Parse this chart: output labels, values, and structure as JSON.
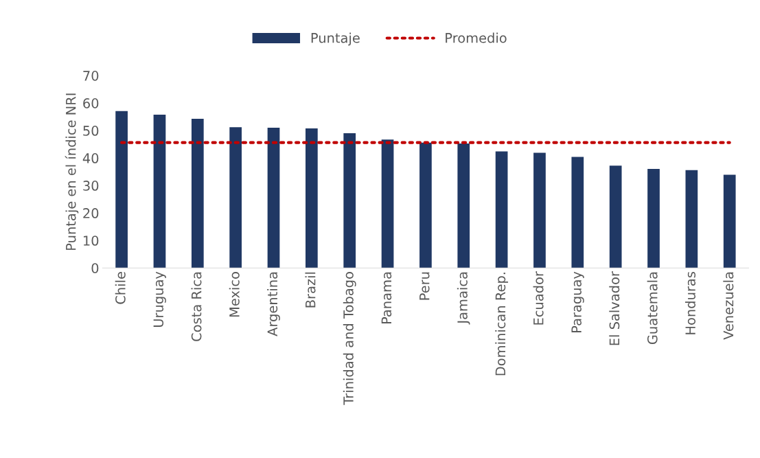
{
  "chart_data": {
    "type": "bar",
    "ylabel": "Puntaje en el índice NRI",
    "categories": [
      "Chile",
      "Uruguay",
      "Costa Rica",
      "Mexico",
      "Argentina",
      "Brazil",
      "Trinidad and Tobago",
      "Panama",
      "Peru",
      "Jamaica",
      "Dominican Rep.",
      "Ecuador",
      "Paraguay",
      "El Salvador",
      "Guatemala",
      "Honduras",
      "Venezuela"
    ],
    "series": [
      {
        "name": "Puntaje",
        "color": "#203864",
        "values": [
          57.1,
          55.8,
          54.3,
          51.2,
          51.0,
          50.8,
          49.0,
          46.7,
          45.6,
          45.3,
          42.4,
          41.9,
          40.4,
          37.2,
          36.0,
          35.6,
          33.9
        ]
      },
      {
        "name": "Promedio",
        "type": "line",
        "color": "#c00000",
        "line_style": "dotted",
        "marker": "none",
        "values": [
          45.6,
          45.6,
          45.6,
          45.6,
          45.6,
          45.6,
          45.6,
          45.6,
          45.6,
          45.6,
          45.6,
          45.6,
          45.6,
          45.6,
          45.6,
          45.6,
          45.6
        ]
      }
    ],
    "ylim": [
      0,
      70
    ],
    "yticks": [
      0,
      10,
      20,
      30,
      40,
      50,
      60,
      70
    ],
    "grid": false,
    "legend": "top"
  }
}
